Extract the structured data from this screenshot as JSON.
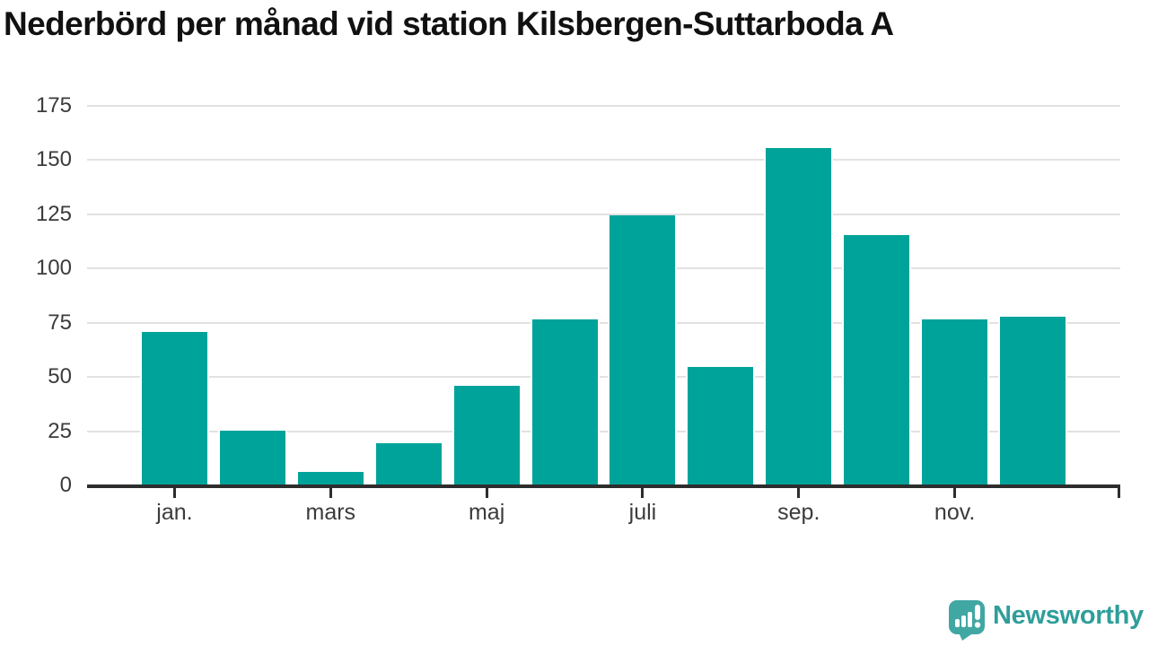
{
  "title": "Nederbörd per månad vid station Kilsbergen-Suttarboda A",
  "colors": {
    "bar": "#00a39a",
    "grid": "#e2e2e2",
    "axis": "#2d2d2d",
    "tick_label": "#3b3b3b",
    "title": "#111111",
    "background": "#ffffff",
    "logo_icon": "#41a7a3",
    "logo_text": "#2f9e99"
  },
  "branding": {
    "logo_text": "Newsworthy",
    "logo_icon": "speech-bubble-bar-chart-icon"
  },
  "chart_data": {
    "type": "bar",
    "categories": [
      "jan.",
      "",
      "mars",
      "",
      "maj",
      "",
      "juli",
      "",
      "sep.",
      "",
      "nov.",
      ""
    ],
    "values": [
      71,
      25.5,
      6.5,
      20,
      46.5,
      77,
      125,
      55,
      156,
      116,
      77,
      78
    ],
    "series_name": "Nederbörd",
    "title": "Nederbörd per månad vid station Kilsbergen-Suttarboda A",
    "xlabel": "",
    "ylabel": "",
    "y_ticks": [
      0,
      25,
      50,
      75,
      100,
      125,
      150,
      175
    ],
    "ylim": [
      0,
      175
    ],
    "grid": "horizontal",
    "legend": "none",
    "bar_color": "#00a39a",
    "end_axis_tick": true
  }
}
